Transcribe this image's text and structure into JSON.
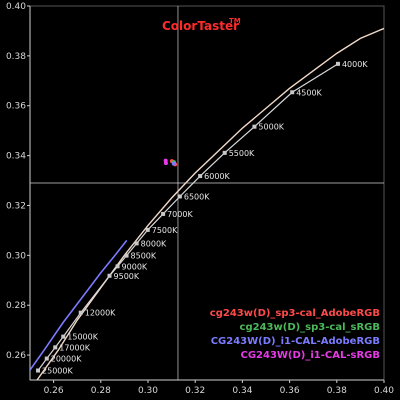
{
  "chart_data": {
    "type": "line",
    "title": "ColorTaster",
    "title_superscript": "TM",
    "xlim": [
      0.25,
      0.4
    ],
    "ylim": [
      0.25,
      0.4
    ],
    "x_ticks": [
      "0.26",
      "0.28",
      "0.30",
      "0.32",
      "0.34",
      "0.36",
      "0.38",
      "0.40"
    ],
    "y_ticks": [
      "0.40",
      "0.38",
      "0.36",
      "0.34",
      "0.32",
      "0.30",
      "0.28",
      "0.26"
    ],
    "grid": false,
    "legend_position": "bottom-right",
    "crosshair": {
      "x": 0.3127,
      "y": 0.329
    },
    "colors": {
      "background": "#000000",
      "axes": "#cfcfcf",
      "planckian_locus": "#d9d9d9",
      "marker": "#c8c8c8",
      "crosshair": "#d0d0d0",
      "title": "#ff2b2b"
    },
    "planckian_points": [
      {
        "label": "4000K",
        "x": 0.3805,
        "y": 0.3768
      },
      {
        "label": "4500K",
        "x": 0.3611,
        "y": 0.3654
      },
      {
        "label": "5000K",
        "x": 0.3451,
        "y": 0.3516
      },
      {
        "label": "5500K",
        "x": 0.3325,
        "y": 0.3411
      },
      {
        "label": "6000K",
        "x": 0.3221,
        "y": 0.3318
      },
      {
        "label": "6500K",
        "x": 0.3135,
        "y": 0.3236
      },
      {
        "label": "7000K",
        "x": 0.3064,
        "y": 0.3166
      },
      {
        "label": "7500K",
        "x": 0.2999,
        "y": 0.3102
      },
      {
        "label": "8000K",
        "x": 0.2952,
        "y": 0.3048
      },
      {
        "label": "8500K",
        "x": 0.2909,
        "y": 0.2999
      },
      {
        "label": "9000K",
        "x": 0.2871,
        "y": 0.2956
      },
      {
        "label": "9500K",
        "x": 0.2837,
        "y": 0.2918
      },
      {
        "label": "12000K",
        "x": 0.2715,
        "y": 0.277
      },
      {
        "label": "15000K",
        "x": 0.2641,
        "y": 0.2674
      },
      {
        "label": "17000K",
        "x": 0.2607,
        "y": 0.2631
      },
      {
        "label": "20000K",
        "x": 0.2571,
        "y": 0.2586
      },
      {
        "label": "25000K",
        "x": 0.2534,
        "y": 0.2538
      }
    ],
    "locus_upper_curve": [
      [
        0.253,
        0.25
      ],
      [
        0.262,
        0.262
      ],
      [
        0.27,
        0.274
      ],
      [
        0.28,
        0.287
      ],
      [
        0.29,
        0.3
      ],
      [
        0.3,
        0.312
      ],
      [
        0.31,
        0.323
      ],
      [
        0.32,
        0.333
      ],
      [
        0.33,
        0.342
      ],
      [
        0.34,
        0.351
      ],
      [
        0.35,
        0.359
      ],
      [
        0.36,
        0.367
      ],
      [
        0.37,
        0.374
      ],
      [
        0.38,
        0.381
      ],
      [
        0.39,
        0.387
      ],
      [
        0.4,
        0.391
      ]
    ],
    "series": [
      {
        "name": "cg243w(D)_sp3-cal_AdobeRGB",
        "color": "#ff4a4a",
        "points": [
          {
            "x": 0.3101,
            "y": 0.3378
          },
          {
            "x": 0.3115,
            "y": 0.3365
          }
        ]
      },
      {
        "name": "cg243w(D)_sp3-cal_sRGB",
        "color": "#4cb85a",
        "points": [
          {
            "x": 0.311,
            "y": 0.3374
          }
        ]
      },
      {
        "name": "CG243W(D)_i1-CAL-AdobeRGB",
        "color": "#7b7bff",
        "points": [
          {
            "x": 0.3109,
            "y": 0.3368
          }
        ],
        "curve": [
          [
            0.25,
            0.254
          ],
          [
            0.256,
            0.262
          ],
          [
            0.264,
            0.273
          ],
          [
            0.272,
            0.283
          ],
          [
            0.28,
            0.293
          ],
          [
            0.286,
            0.3
          ],
          [
            0.291,
            0.306
          ]
        ]
      },
      {
        "name": "CG243W(D)_i1-CAL-sRGB",
        "color": "#e63ce6",
        "points": [
          {
            "x": 0.3075,
            "y": 0.338
          },
          {
            "x": 0.3076,
            "y": 0.337
          }
        ]
      }
    ]
  }
}
